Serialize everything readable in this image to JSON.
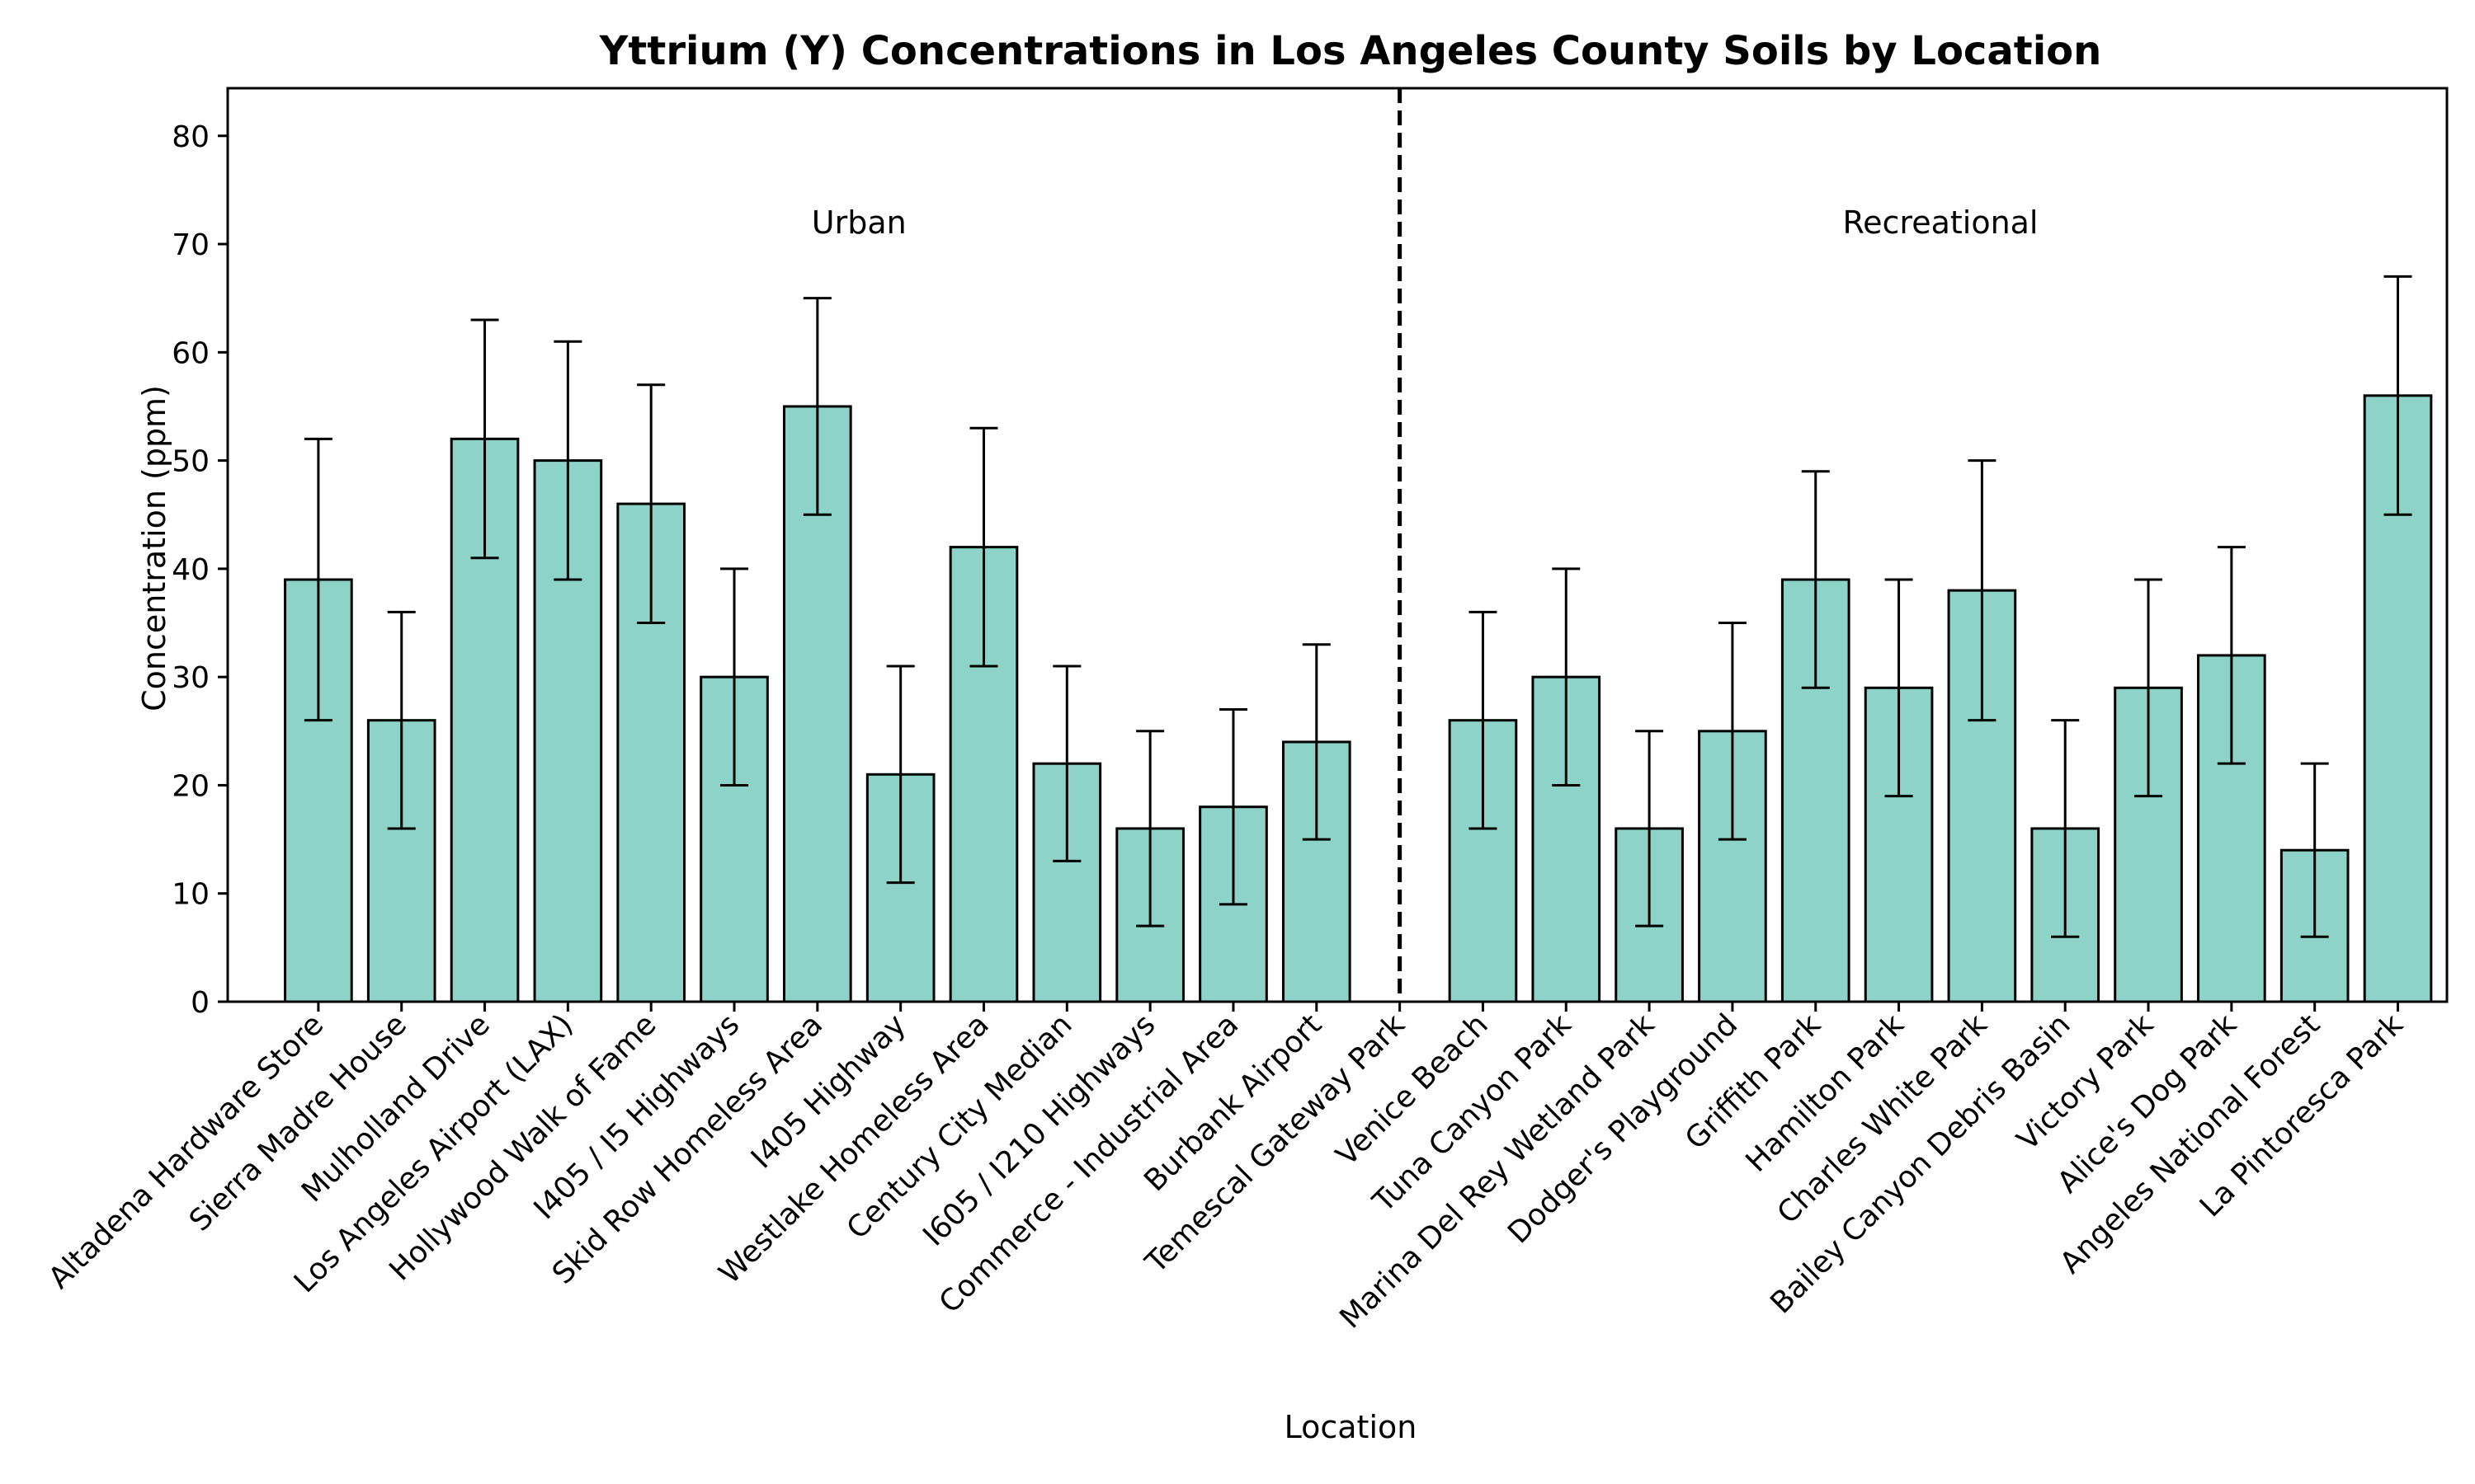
{
  "chart_data": {
    "type": "bar",
    "title": "Yttrium (Y) Concentrations in Los Angeles County Soils by Location",
    "xlabel": "Location",
    "ylabel": "Concentration (ppm)",
    "ylim": [
      0,
      84.4
    ],
    "yticks": [
      0,
      10,
      20,
      30,
      40,
      50,
      60,
      70,
      80
    ],
    "grid": false,
    "bar_color": "#8dd3c7",
    "edge_color": "#000000",
    "categories": [
      "Altadena Hardware Store",
      "Sierra Madre House",
      "Mulholland Drive",
      "Los Angeles Airport (LAX)",
      "Hollywood Walk of Fame",
      "I405 / I5 Highways",
      "Skid Row Homeless Area",
      "I405 Highway",
      "Westlake Homeless Area",
      "Century City Median",
      "I605 / I210 Highways",
      "Commerce - Industrial Area",
      "Burbank Airport",
      "Temescal Gateway Park",
      "Venice Beach",
      "Tuna Canyon Park",
      "Marina Del Rey Wetland Park",
      "Dodger's Playground",
      "Griffith Park",
      "Hamilton Park",
      "Charles White Park",
      "Bailey Canyon Debris Basin",
      "Victory Park",
      "Alice's Dog Park",
      "Angeles National Forest",
      "La Pintoresca Park"
    ],
    "values": [
      39,
      26,
      52,
      50,
      46,
      30,
      55,
      21,
      42,
      22,
      16,
      18,
      24,
      0,
      26,
      30,
      16,
      25,
      39,
      29,
      38,
      16,
      29,
      32,
      14,
      56
    ],
    "error_low": [
      26,
      16,
      41,
      39,
      35,
      20,
      45,
      11,
      31,
      13,
      7,
      9,
      15,
      null,
      16,
      20,
      7,
      15,
      29,
      19,
      26,
      6,
      19,
      22,
      6,
      45
    ],
    "error_high": [
      52,
      36,
      63,
      61,
      57,
      40,
      65,
      31,
      53,
      31,
      25,
      27,
      33,
      null,
      36,
      40,
      25,
      35,
      49,
      39,
      50,
      26,
      39,
      42,
      22,
      67
    ],
    "divider_after_index": 13.5,
    "groups": [
      {
        "label": "Urban",
        "center_index": 6.5,
        "y": 72
      },
      {
        "label": "Recreational",
        "center_index": 19.5,
        "y": 72
      }
    ]
  }
}
